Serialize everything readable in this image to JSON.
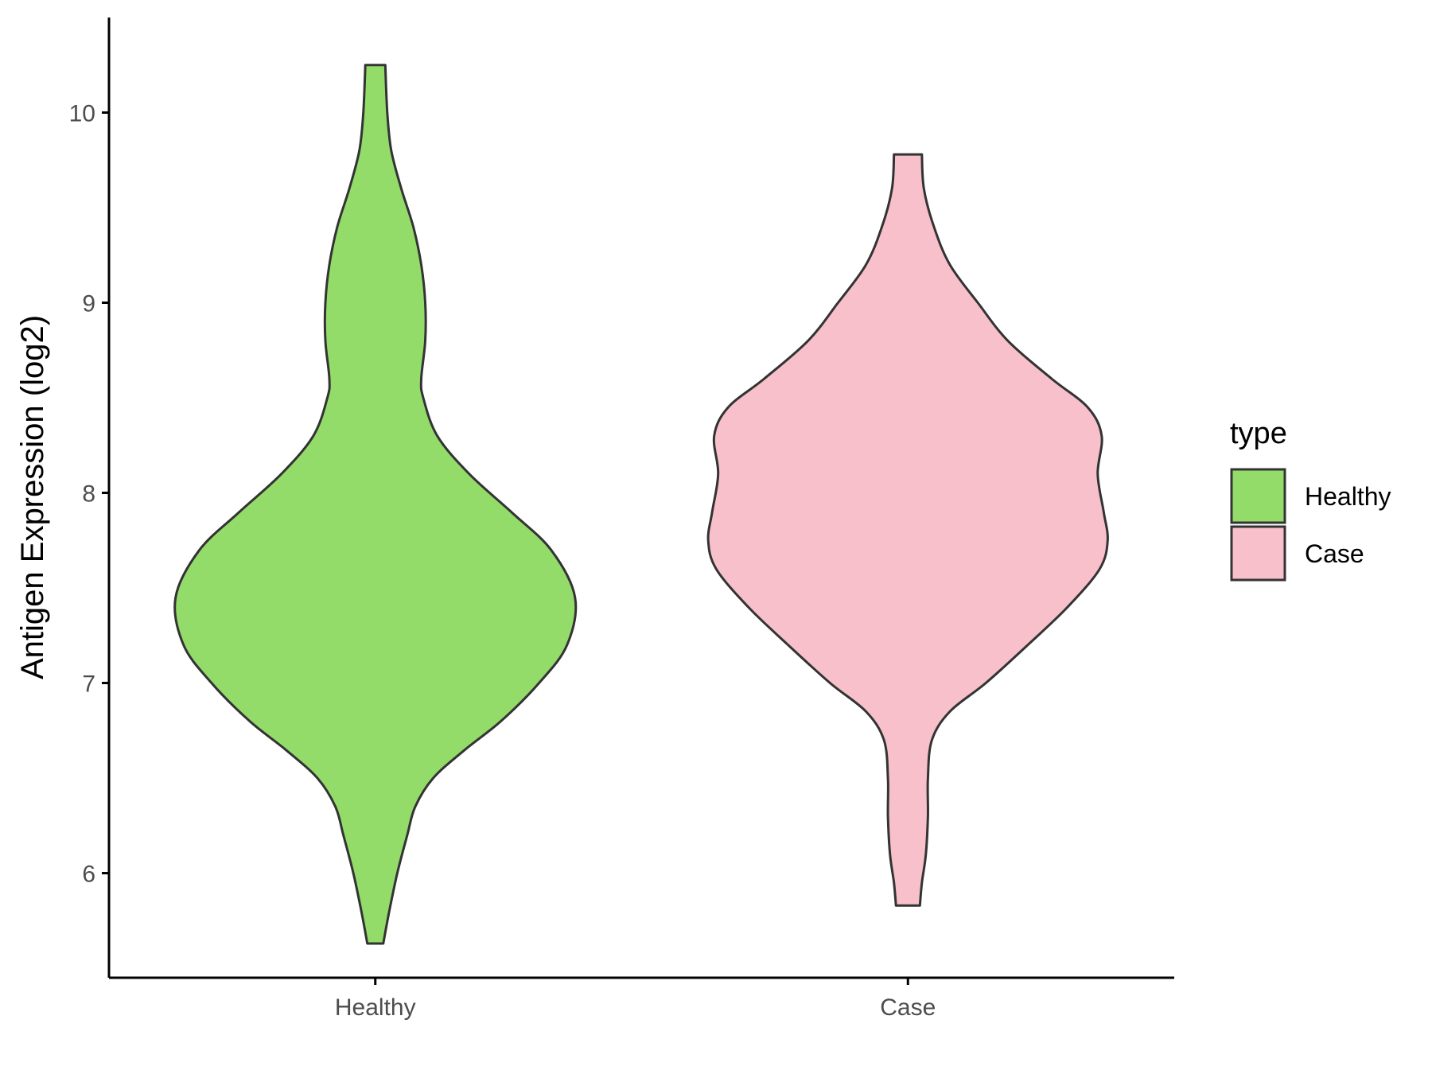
{
  "chart_data": {
    "type": "violin",
    "ylabel": "Antigen Expression (log2)",
    "xlabel": "",
    "categories": [
      "Healthy",
      "Case"
    ],
    "yticks": [
      6,
      7,
      8,
      9,
      10
    ],
    "ylim": [
      5.45,
      10.5
    ],
    "grid": false,
    "legend": {
      "title": "type",
      "position": "right",
      "entries": [
        {
          "label": "Healthy",
          "color": "#93dc6a"
        },
        {
          "label": "Case",
          "color": "#f7c0cb"
        }
      ]
    },
    "series": [
      {
        "category": "Healthy",
        "color": "#93dc6a",
        "min": 5.63,
        "max": 10.25,
        "profile": [
          [
            5.63,
            0.04
          ],
          [
            5.8,
            0.07
          ],
          [
            6.0,
            0.11
          ],
          [
            6.2,
            0.16
          ],
          [
            6.35,
            0.2
          ],
          [
            6.5,
            0.29
          ],
          [
            6.65,
            0.45
          ],
          [
            6.8,
            0.63
          ],
          [
            7.0,
            0.82
          ],
          [
            7.2,
            0.96
          ],
          [
            7.45,
            1.0
          ],
          [
            7.7,
            0.88
          ],
          [
            7.9,
            0.68
          ],
          [
            8.1,
            0.47
          ],
          [
            8.3,
            0.31
          ],
          [
            8.5,
            0.24
          ],
          [
            8.6,
            0.23
          ],
          [
            8.8,
            0.25
          ],
          [
            9.0,
            0.25
          ],
          [
            9.2,
            0.23
          ],
          [
            9.4,
            0.19
          ],
          [
            9.6,
            0.13
          ],
          [
            9.8,
            0.08
          ],
          [
            10.0,
            0.06
          ],
          [
            10.25,
            0.05
          ]
        ]
      },
      {
        "category": "Case",
        "color": "#f7c0cb",
        "min": 5.83,
        "max": 9.78,
        "profile": [
          [
            5.83,
            0.06
          ],
          [
            5.95,
            0.07
          ],
          [
            6.1,
            0.09
          ],
          [
            6.3,
            0.1
          ],
          [
            6.5,
            0.1
          ],
          [
            6.7,
            0.12
          ],
          [
            6.85,
            0.21
          ],
          [
            7.0,
            0.39
          ],
          [
            7.2,
            0.6
          ],
          [
            7.4,
            0.8
          ],
          [
            7.6,
            0.96
          ],
          [
            7.75,
            1.0
          ],
          [
            7.9,
            0.98
          ],
          [
            8.1,
            0.95
          ],
          [
            8.3,
            0.97
          ],
          [
            8.45,
            0.9
          ],
          [
            8.6,
            0.72
          ],
          [
            8.8,
            0.5
          ],
          [
            9.0,
            0.35
          ],
          [
            9.2,
            0.21
          ],
          [
            9.4,
            0.13
          ],
          [
            9.6,
            0.08
          ],
          [
            9.78,
            0.07
          ]
        ]
      }
    ]
  }
}
